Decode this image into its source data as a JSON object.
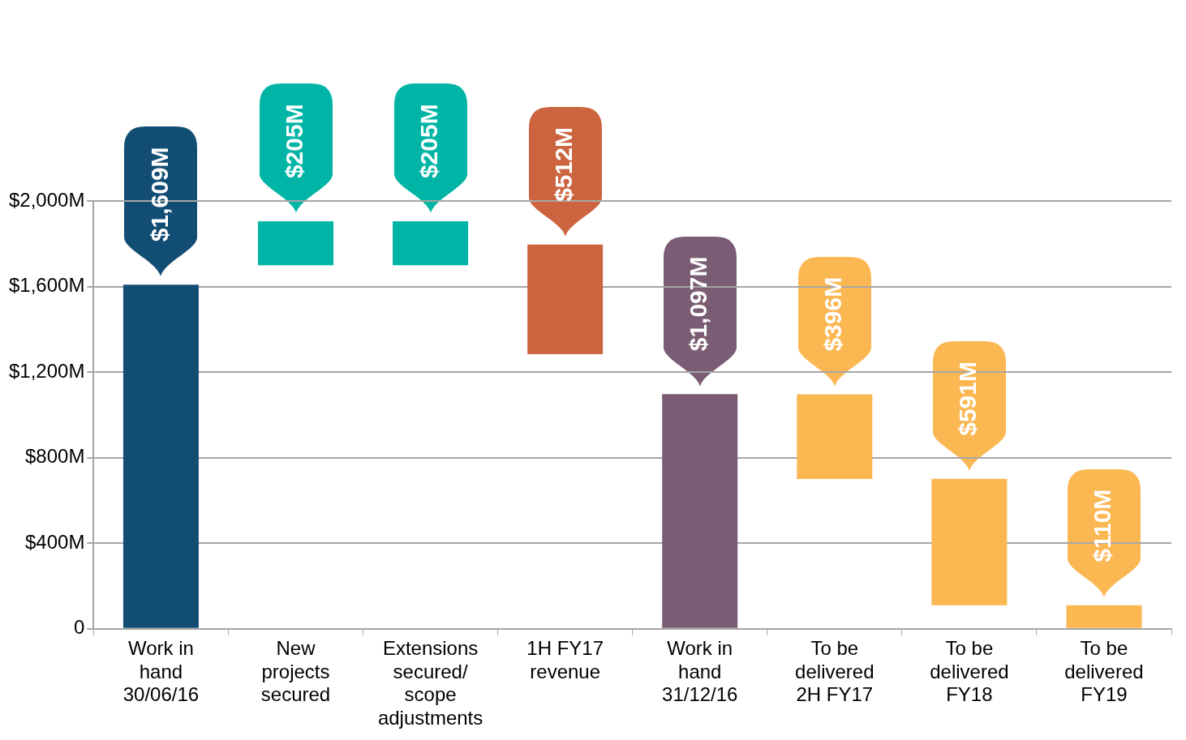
{
  "chart_data": {
    "type": "bar",
    "categories": [
      "Work in hand 30/06/16",
      "New projects secured",
      "Extensions secured/ scope adjustments",
      "1H FY17 revenue",
      "Work in hand 31/12/16",
      "To be delivered 2H FY17",
      "To be delivered FY18",
      "To be delivered FY19"
    ],
    "values": [
      1609,
      205,
      205,
      512,
      1097,
      396,
      591,
      110
    ],
    "base": [
      0,
      1700,
      1700,
      1284,
      0,
      700,
      110,
      0
    ],
    "colors": [
      "#124e74",
      "#00b5a5",
      "#00b5a5",
      "#cd6440",
      "#7a5c74",
      "#fbb752",
      "#fbb752",
      "#fbb752"
    ],
    "value_labels": [
      "$1,609M",
      "$205M",
      "$205M",
      "$512M",
      "$1,097M",
      "$396M",
      "$591M",
      "$110M"
    ],
    "ylim": [
      0,
      2000
    ],
    "yticks": [
      {
        "value": 0,
        "label": "0"
      },
      {
        "value": 400,
        "label": "$400M"
      },
      {
        "value": 800,
        "label": "$800M"
      },
      {
        "value": 1200,
        "label": "$1,200M"
      },
      {
        "value": 1600,
        "label": "$1,600M"
      },
      {
        "value": 2000,
        "label": "$2,000M"
      }
    ],
    "grid": "y",
    "legend": false
  }
}
